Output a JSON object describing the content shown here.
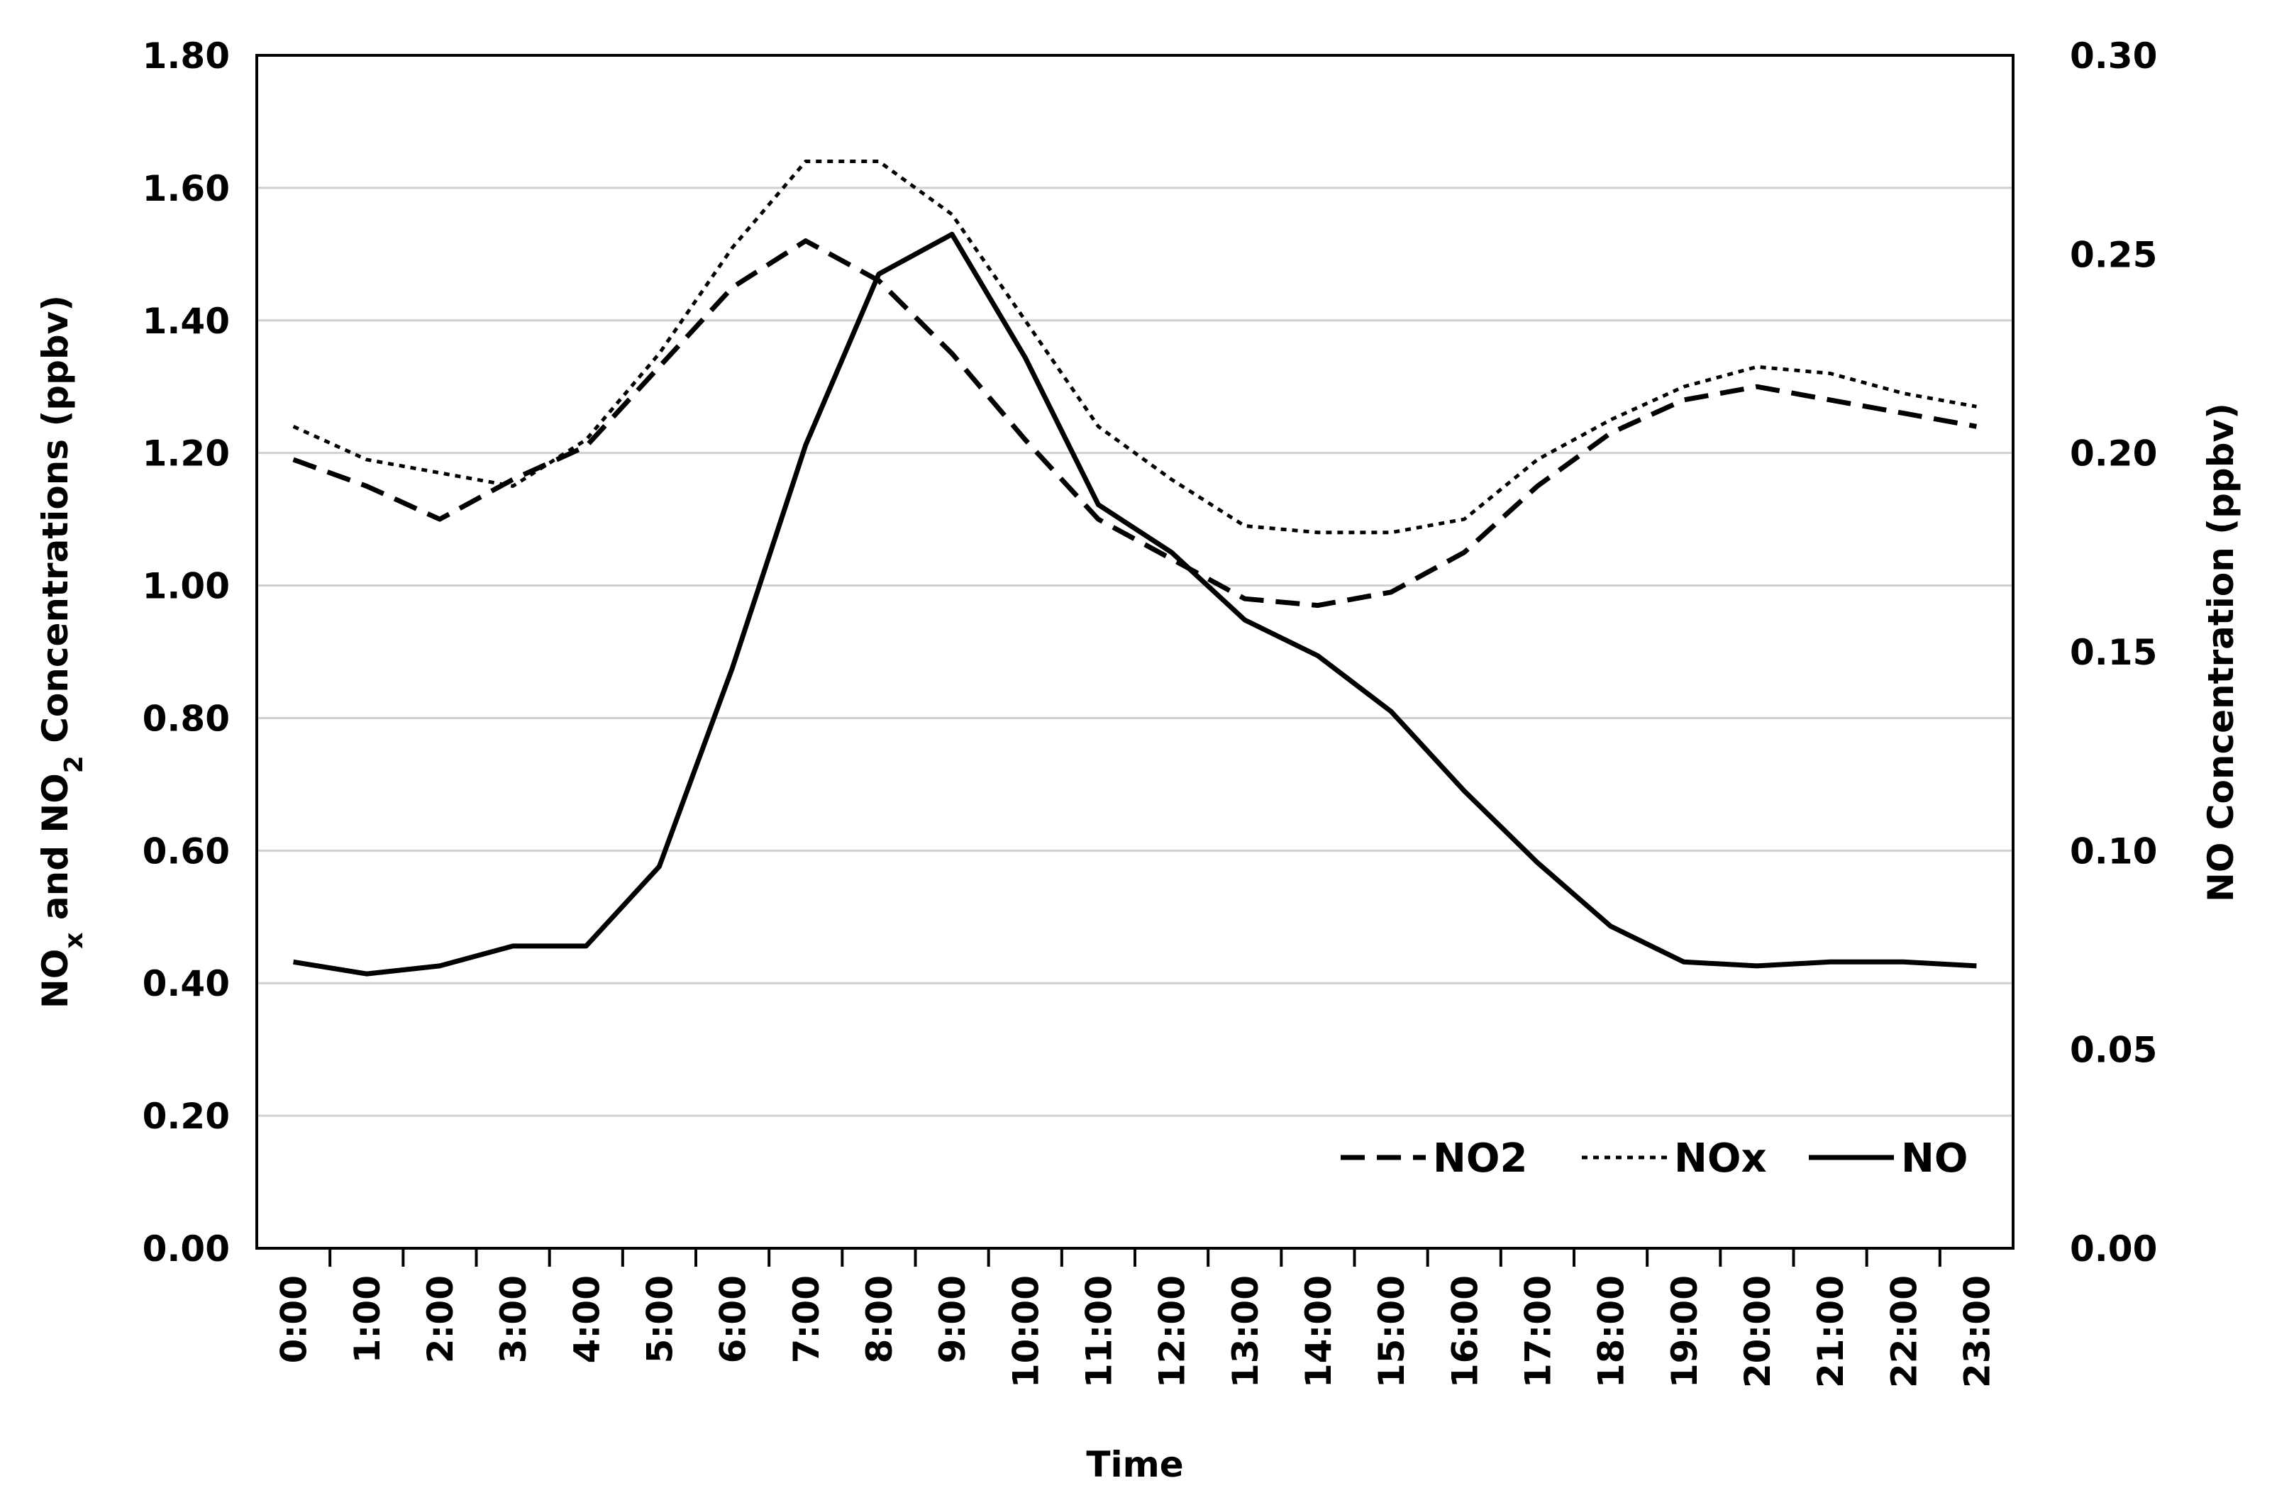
{
  "chart_data": {
    "type": "line",
    "xlabel": "Time",
    "ylabel_left": {
      "main": "NO",
      "sub1": "x",
      "mid": " and NO",
      "sub2": "2",
      "end": " Concentrations (ppbv)"
    },
    "ylabel_right": "NO Concentration (ppbv)",
    "categories": [
      "0:00",
      "1:00",
      "2:00",
      "3:00",
      "4:00",
      "5:00",
      "6:00",
      "7:00",
      "8:00",
      "9:00",
      "10:00",
      "11:00",
      "12:00",
      "13:00",
      "14:00",
      "15:00",
      "16:00",
      "17:00",
      "18:00",
      "19:00",
      "20:00",
      "21:00",
      "22:00",
      "23:00"
    ],
    "ylim_left": [
      0,
      1.8
    ],
    "ylim_right": [
      0,
      0.3
    ],
    "yticks_left": [
      "0.00",
      "0.20",
      "0.40",
      "0.60",
      "0.80",
      "1.00",
      "1.20",
      "1.40",
      "1.60",
      "1.80"
    ],
    "yticks_right": [
      "0.00",
      "0.05",
      "0.10",
      "0.15",
      "0.20",
      "0.25",
      "0.30"
    ],
    "grid": "horizontal",
    "legend_position": "bottom-right",
    "series": [
      {
        "name": "NO2",
        "axis": "left",
        "dash": "dashed",
        "values": [
          1.19,
          1.15,
          1.1,
          1.16,
          1.21,
          1.33,
          1.45,
          1.52,
          1.46,
          1.35,
          1.22,
          1.1,
          1.04,
          0.98,
          0.97,
          0.99,
          1.05,
          1.15,
          1.23,
          1.28,
          1.3,
          1.28,
          1.26,
          1.24
        ]
      },
      {
        "name": "NOx",
        "axis": "left",
        "dash": "dotted",
        "values": [
          1.24,
          1.19,
          1.17,
          1.15,
          1.22,
          1.35,
          1.51,
          1.64,
          1.64,
          1.56,
          1.4,
          1.24,
          1.16,
          1.09,
          1.08,
          1.08,
          1.1,
          1.19,
          1.25,
          1.3,
          1.33,
          1.32,
          1.29,
          1.27
        ]
      },
      {
        "name": "NO",
        "axis": "right",
        "dash": "solid",
        "values": [
          0.072,
          0.069,
          0.071,
          0.076,
          0.076,
          0.096,
          0.146,
          0.202,
          0.245,
          0.255,
          0.224,
          0.187,
          0.175,
          0.158,
          0.149,
          0.135,
          0.115,
          0.097,
          0.081,
          0.072,
          0.071,
          0.072,
          0.072,
          0.071
        ]
      }
    ]
  }
}
